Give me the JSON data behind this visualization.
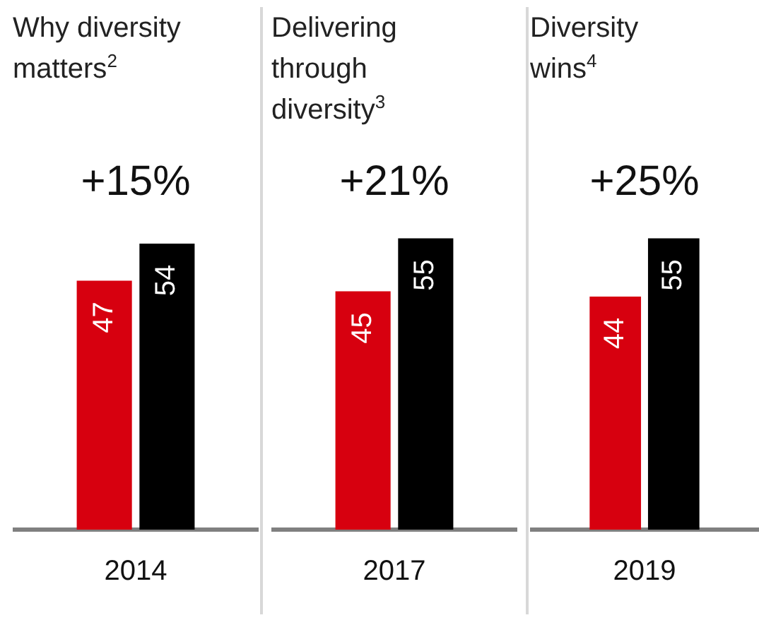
{
  "chart_data": [
    {
      "type": "bar",
      "title": "Why diversity matters$^{2}$",
      "categories": [
        "2014"
      ],
      "series": [
        {
          "color": "#d7000f",
          "values": [
            47
          ]
        },
        {
          "color": "#000000",
          "values": [
            54
          ]
        }
      ],
      "tick_labels": "x",
      "data_labels": true,
      "annotations": [
        "+15%"
      ]
    },
    {
      "type": "bar",
      "title": "Delivering through diversity$^{3}$",
      "categories": [
        "2017"
      ],
      "series": [
        {
          "color": "#d7000f",
          "values": [
            45
          ]
        },
        {
          "color": "#000000",
          "values": [
            55
          ]
        }
      ],
      "tick_labels": "x",
      "data_labels": true,
      "annotations": [
        "+21%"
      ]
    },
    {
      "type": "bar",
      "title": "Diversity wins$^{4}$",
      "categories": [
        "2019"
      ],
      "series": [
        {
          "color": "#d7000f",
          "values": [
            44
          ]
        },
        {
          "color": "#000000",
          "values": [
            55
          ]
        }
      ],
      "tick_labels": "x",
      "data_labels": true,
      "annotations": [
        "+25%"
      ]
    }
  ]
}
